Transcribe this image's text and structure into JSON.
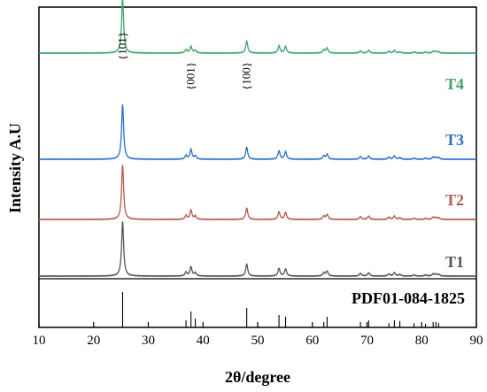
{
  "chart_data": {
    "type": "line",
    "title": "",
    "xlabel": "2θ/degree",
    "ylabel": "Intensity A.U",
    "xlim": [
      10,
      90
    ],
    "xticks": [
      10,
      20,
      30,
      40,
      50,
      60,
      70,
      80,
      90
    ],
    "grid": false,
    "legend": "right-inline",
    "annotations": [
      {
        "text": "{101}",
        "x": 25.3
      },
      {
        "text": "{001}",
        "x": 37.8
      },
      {
        "text": "{100}",
        "x": 48.0
      }
    ],
    "peak_positions": [
      25.3,
      36.9,
      37.8,
      38.6,
      48.0,
      53.9,
      55.1,
      62.1,
      62.7,
      68.8,
      70.3,
      74.0,
      75.0,
      76.0,
      78.6,
      80.7,
      82.1,
      82.6,
      83.1
    ],
    "series": [
      {
        "name": "T4",
        "color": "#3aa66a",
        "peak_heights": [
          1.0,
          0.06,
          0.12,
          0.05,
          0.22,
          0.13,
          0.12,
          0.06,
          0.09,
          0.04,
          0.05,
          0.03,
          0.05,
          0.02,
          0.02,
          0.02,
          0.03,
          0.03,
          0.02
        ]
      },
      {
        "name": "T3",
        "color": "#2a6fcb",
        "peak_heights": [
          1.0,
          0.07,
          0.18,
          0.06,
          0.22,
          0.15,
          0.14,
          0.06,
          0.09,
          0.05,
          0.06,
          0.04,
          0.06,
          0.03,
          0.02,
          0.02,
          0.04,
          0.03,
          0.03
        ]
      },
      {
        "name": "T2",
        "color": "#b55a4e",
        "peak_heights": [
          1.0,
          0.07,
          0.17,
          0.06,
          0.21,
          0.14,
          0.13,
          0.06,
          0.09,
          0.05,
          0.06,
          0.04,
          0.06,
          0.03,
          0.02,
          0.02,
          0.04,
          0.03,
          0.03
        ]
      },
      {
        "name": "T1",
        "color": "#555555",
        "peak_heights": [
          1.0,
          0.07,
          0.17,
          0.06,
          0.22,
          0.14,
          0.13,
          0.06,
          0.09,
          0.05,
          0.06,
          0.04,
          0.06,
          0.03,
          0.02,
          0.02,
          0.04,
          0.03,
          0.03
        ]
      }
    ],
    "reference": {
      "name": "PDF01-084-1825",
      "color": "#000000",
      "peak_heights": [
        1.0,
        0.2,
        0.45,
        0.25,
        0.55,
        0.35,
        0.3,
        0.15,
        0.3,
        0.15,
        0.2,
        0.12,
        0.2,
        0.18,
        0.12,
        0.1,
        0.15,
        0.15,
        0.12
      ]
    }
  }
}
